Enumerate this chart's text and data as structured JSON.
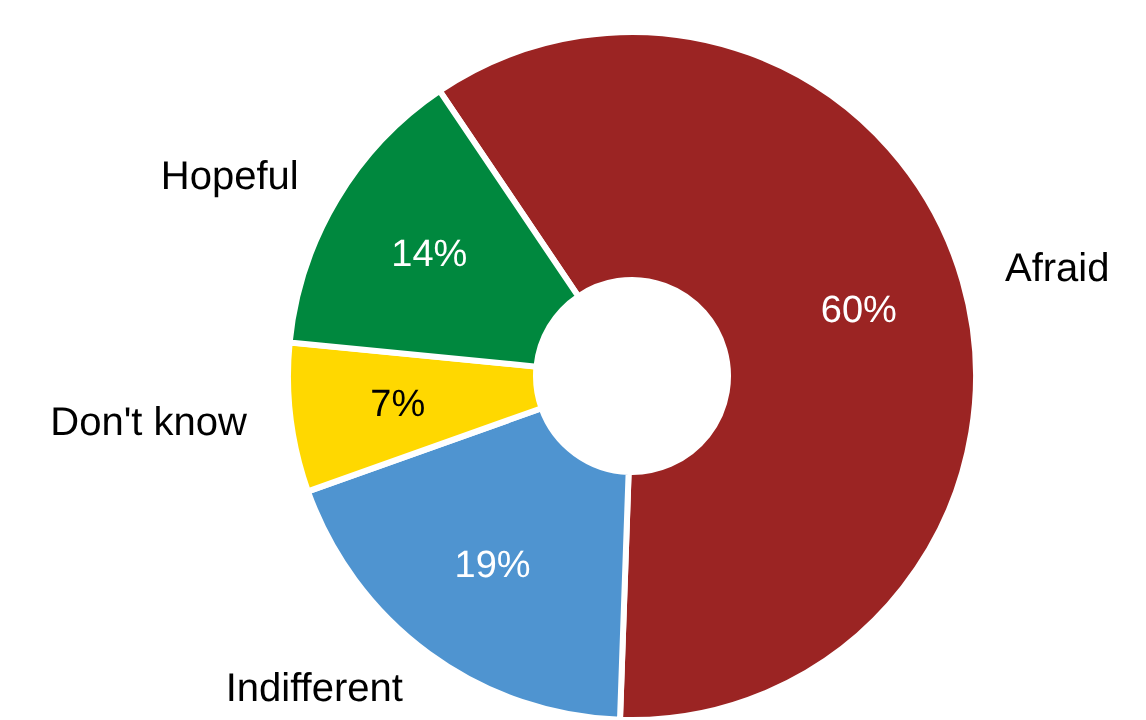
{
  "chart_data": {
    "type": "donut",
    "categories": [
      "Afraid",
      "Indifferent",
      "Don't know",
      "Hopeful"
    ],
    "values": [
      60,
      19,
      7,
      14
    ],
    "colors": [
      "#9b2423",
      "#4f94d0",
      "#ffd800",
      "#00883e"
    ],
    "value_labels": [
      "60%",
      "19%",
      "7%",
      "14%"
    ],
    "legend": false
  }
}
